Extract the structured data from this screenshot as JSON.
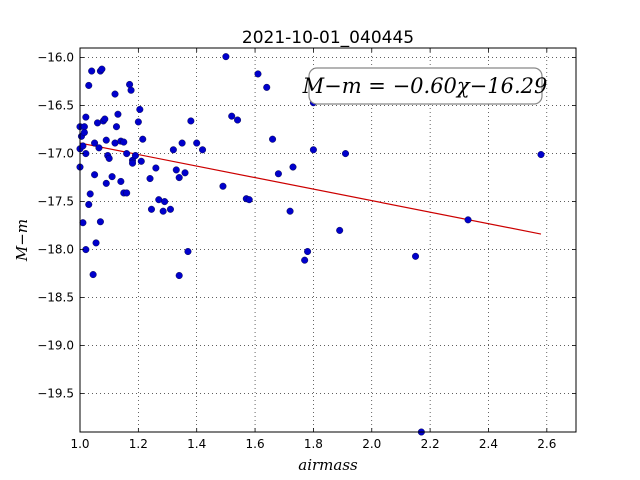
{
  "chart_data": {
    "type": "scatter",
    "title": "2021-10-01_040445",
    "xlabel": "airmass",
    "ylabel": "M−m",
    "xlim": [
      1.0,
      2.7
    ],
    "ylim": [
      -19.9,
      -15.9
    ],
    "y_inverted": true,
    "grid": true,
    "xticks": [
      "1.0",
      "1.2",
      "1.4",
      "1.6",
      "1.8",
      "2.0",
      "2.2",
      "2.4",
      "2.6"
    ],
    "yticks": [
      "−16.0",
      "−16.5",
      "−17.0",
      "−17.5",
      "−18.0",
      "−18.5",
      "−19.0",
      "−19.5"
    ],
    "annotation": "M−m = −0.60χ−16.29",
    "colors": {
      "points": "#0000cc",
      "fit_line": "#cc0000"
    },
    "fit_line": {
      "slope": -0.6,
      "intercept": -16.29,
      "x_range": [
        1.0,
        2.58
      ]
    },
    "points": [
      [
        1.0,
        -16.72
      ],
      [
        1.0,
        -16.95
      ],
      [
        1.0,
        -17.14
      ],
      [
        1.005,
        -16.82
      ],
      [
        1.01,
        -16.92
      ],
      [
        1.01,
        -17.72
      ],
      [
        1.015,
        -16.72
      ],
      [
        1.015,
        -16.78
      ],
      [
        1.02,
        -17.0
      ],
      [
        1.02,
        -16.62
      ],
      [
        1.02,
        -18.0
      ],
      [
        1.03,
        -16.29
      ],
      [
        1.03,
        -17.53
      ],
      [
        1.035,
        -17.42
      ],
      [
        1.04,
        -16.14
      ],
      [
        1.045,
        -18.26
      ],
      [
        1.05,
        -16.89
      ],
      [
        1.05,
        -17.22
      ],
      [
        1.055,
        -17.93
      ],
      [
        1.06,
        -16.68
      ],
      [
        1.065,
        -16.94
      ],
      [
        1.07,
        -16.14
      ],
      [
        1.07,
        -17.71
      ],
      [
        1.075,
        -16.12
      ],
      [
        1.08,
        -16.66
      ],
      [
        1.085,
        -16.64
      ],
      [
        1.09,
        -16.86
      ],
      [
        1.09,
        -17.31
      ],
      [
        1.095,
        -17.02
      ],
      [
        1.1,
        -17.05
      ],
      [
        1.11,
        -17.24
      ],
      [
        1.12,
        -16.38
      ],
      [
        1.12,
        -16.89
      ],
      [
        1.125,
        -16.72
      ],
      [
        1.13,
        -16.59
      ],
      [
        1.14,
        -17.29
      ],
      [
        1.14,
        -16.87
      ],
      [
        1.15,
        -16.88
      ],
      [
        1.15,
        -17.41
      ],
      [
        1.16,
        -17.0
      ],
      [
        1.16,
        -17.41
      ],
      [
        1.17,
        -16.28
      ],
      [
        1.175,
        -16.34
      ],
      [
        1.18,
        -17.07
      ],
      [
        1.18,
        -17.1
      ],
      [
        1.19,
        -17.02
      ],
      [
        1.2,
        -16.67
      ],
      [
        1.205,
        -16.54
      ],
      [
        1.21,
        -17.08
      ],
      [
        1.215,
        -16.85
      ],
      [
        1.24,
        -17.26
      ],
      [
        1.245,
        -17.58
      ],
      [
        1.26,
        -17.15
      ],
      [
        1.27,
        -17.48
      ],
      [
        1.285,
        -17.6
      ],
      [
        1.29,
        -17.5
      ],
      [
        1.31,
        -17.58
      ],
      [
        1.32,
        -16.96
      ],
      [
        1.33,
        -17.17
      ],
      [
        1.34,
        -17.25
      ],
      [
        1.34,
        -18.27
      ],
      [
        1.35,
        -16.89
      ],
      [
        1.36,
        -17.2
      ],
      [
        1.37,
        -18.02
      ],
      [
        1.38,
        -16.66
      ],
      [
        1.4,
        -16.89
      ],
      [
        1.42,
        -16.96
      ],
      [
        1.49,
        -17.34
      ],
      [
        1.5,
        -15.99
      ],
      [
        1.52,
        -16.61
      ],
      [
        1.54,
        -16.65
      ],
      [
        1.57,
        -17.47
      ],
      [
        1.58,
        -17.48
      ],
      [
        1.61,
        -16.17
      ],
      [
        1.64,
        -16.31
      ],
      [
        1.66,
        -16.85
      ],
      [
        1.68,
        -17.21
      ],
      [
        1.72,
        -17.6
      ],
      [
        1.73,
        -17.14
      ],
      [
        1.77,
        -18.11
      ],
      [
        1.78,
        -18.02
      ],
      [
        1.8,
        -16.47
      ],
      [
        1.8,
        -16.96
      ],
      [
        1.82,
        -16.44
      ],
      [
        1.89,
        -17.8
      ],
      [
        1.91,
        -17.0
      ],
      [
        2.15,
        -18.07
      ],
      [
        2.17,
        -19.9
      ],
      [
        2.33,
        -17.69
      ],
      [
        2.58,
        -17.01
      ]
    ]
  }
}
